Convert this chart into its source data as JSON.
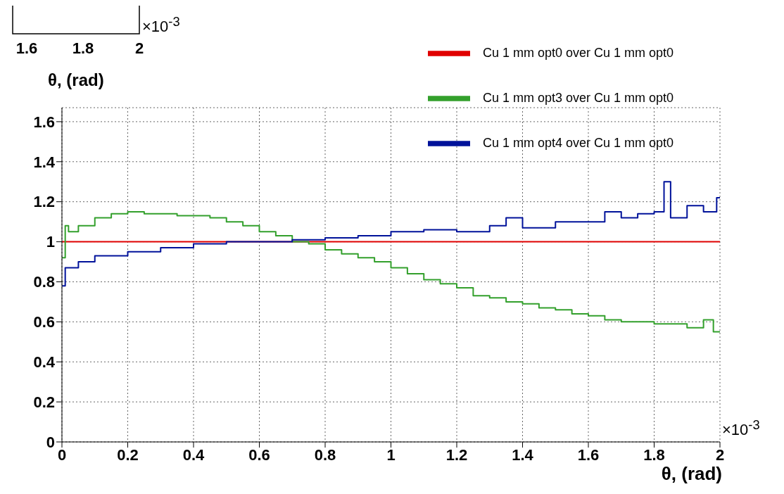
{
  "chart_data": [
    {
      "type": "other",
      "xlabel": "θ, (rad)",
      "annotations": [
        "1.6",
        "1.8",
        "2",
        "×10$^{-3}$"
      ]
    },
    {
      "type": "step",
      "xlabel": "θ, (rad)",
      "annotations": [
        "×10$^{-3}$"
      ],
      "xlim": [
        0,
        2
      ],
      "xticks": [
        0,
        0.2,
        0.4,
        0.6,
        0.8,
        1,
        1.2,
        1.4,
        1.6,
        1.8,
        2
      ],
      "ylim": [
        0,
        1.67
      ],
      "yticks": [
        0,
        0.2,
        0.4,
        0.6,
        0.8,
        1,
        1.2,
        1.4,
        1.6
      ],
      "grid": true,
      "legend": "top right",
      "series": [
        {
          "name": "Cu 1 mm opt0 over Cu 1 mm opt0",
          "color": "#e00000",
          "x": [
            0,
            2
          ],
          "values": [
            1,
            1
          ]
        },
        {
          "name": "Cu 1 mm opt3 over Cu 1 mm opt0",
          "color": "#33a02c",
          "x": [
            0,
            0.01,
            0.02,
            0.05,
            0.1,
            0.15,
            0.2,
            0.25,
            0.3,
            0.35,
            0.4,
            0.45,
            0.5,
            0.55,
            0.6,
            0.65,
            0.7,
            0.75,
            0.8,
            0.85,
            0.9,
            0.95,
            1,
            1.05,
            1.1,
            1.15,
            1.2,
            1.25,
            1.3,
            1.35,
            1.4,
            1.45,
            1.5,
            1.55,
            1.6,
            1.65,
            1.7,
            1.75,
            1.8,
            1.85,
            1.9,
            1.95,
            1.98,
            2
          ],
          "values": [
            0.92,
            1.08,
            1.05,
            1.08,
            1.12,
            1.14,
            1.15,
            1.14,
            1.14,
            1.13,
            1.13,
            1.12,
            1.1,
            1.08,
            1.05,
            1.03,
            1,
            0.99,
            0.96,
            0.94,
            0.92,
            0.9,
            0.87,
            0.84,
            0.81,
            0.79,
            0.77,
            0.73,
            0.72,
            0.7,
            0.69,
            0.67,
            0.66,
            0.64,
            0.63,
            0.61,
            0.6,
            0.6,
            0.59,
            0.59,
            0.57,
            0.61,
            0.55,
            0.55
          ]
        },
        {
          "name": "Cu 1 mm opt4 over Cu 1 mm opt0",
          "color": "#00129a",
          "x": [
            0,
            0.01,
            0.05,
            0.1,
            0.2,
            0.3,
            0.4,
            0.5,
            0.6,
            0.7,
            0.8,
            0.9,
            1,
            1.1,
            1.2,
            1.3,
            1.35,
            1.4,
            1.5,
            1.6,
            1.65,
            1.7,
            1.75,
            1.8,
            1.83,
            1.85,
            1.9,
            1.95,
            1.99,
            2
          ],
          "values": [
            0.78,
            0.87,
            0.9,
            0.93,
            0.95,
            0.97,
            0.99,
            1,
            1,
            1.01,
            1.02,
            1.03,
            1.05,
            1.06,
            1.05,
            1.08,
            1.12,
            1.07,
            1.1,
            1.1,
            1.15,
            1.12,
            1.14,
            1.15,
            1.3,
            1.12,
            1.18,
            1.15,
            1.22,
            1.22
          ]
        }
      ]
    }
  ]
}
